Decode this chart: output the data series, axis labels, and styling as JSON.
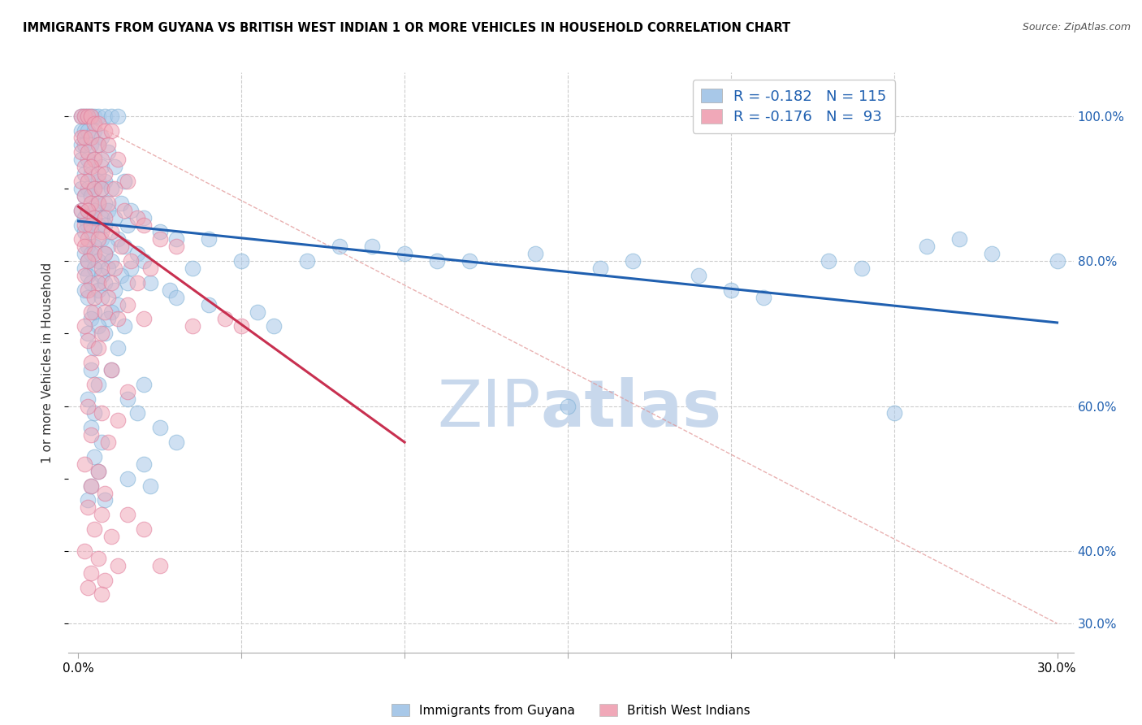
{
  "title": "IMMIGRANTS FROM GUYANA VS BRITISH WEST INDIAN 1 OR MORE VEHICLES IN HOUSEHOLD CORRELATION CHART",
  "source": "Source: ZipAtlas.com",
  "xlabel_vals": [
    0.0,
    5.0,
    10.0,
    15.0,
    20.0,
    25.0,
    30.0
  ],
  "xlabel_show": [
    0.0,
    30.0
  ],
  "ylabel": "1 or more Vehicles in Household",
  "ylabel_vals": [
    30.0,
    40.0,
    60.0,
    80.0,
    100.0
  ],
  "xlim": [
    -0.3,
    30.5
  ],
  "ylim": [
    26.0,
    106.0
  ],
  "legend_r_blue": "R = -0.182",
  "legend_n_blue": "N = 115",
  "legend_r_pink": "R = -0.176",
  "legend_n_pink": "N =  93",
  "legend_bottom_blue": "Immigrants from Guyana",
  "legend_bottom_pink": "British West Indians",
  "blue_color": "#a8c8e8",
  "blue_edge": "#7aafd4",
  "pink_color": "#f0a8b8",
  "pink_edge": "#e07898",
  "blue_line_color": "#2060b0",
  "pink_line_color": "#c83050",
  "blue_line": [
    [
      0.0,
      85.5
    ],
    [
      30.0,
      71.5
    ]
  ],
  "pink_line": [
    [
      0.0,
      87.5
    ],
    [
      10.0,
      55.0
    ]
  ],
  "diag_line": [
    [
      0.0,
      100.0
    ],
    [
      30.0,
      30.0
    ]
  ],
  "blue_scatter": [
    [
      0.1,
      100.0
    ],
    [
      0.2,
      100.0
    ],
    [
      0.3,
      100.0
    ],
    [
      0.4,
      100.0
    ],
    [
      0.5,
      100.0
    ],
    [
      0.6,
      100.0
    ],
    [
      0.8,
      100.0
    ],
    [
      1.0,
      100.0
    ],
    [
      1.2,
      100.0
    ],
    [
      0.1,
      98.0
    ],
    [
      0.2,
      98.0
    ],
    [
      0.3,
      98.0
    ],
    [
      0.5,
      98.0
    ],
    [
      0.7,
      97.0
    ],
    [
      0.1,
      96.0
    ],
    [
      0.2,
      96.0
    ],
    [
      0.4,
      96.0
    ],
    [
      0.6,
      96.0
    ],
    [
      0.9,
      95.0
    ],
    [
      0.1,
      94.0
    ],
    [
      0.3,
      94.0
    ],
    [
      0.5,
      94.0
    ],
    [
      0.7,
      93.0
    ],
    [
      1.1,
      93.0
    ],
    [
      0.2,
      92.0
    ],
    [
      0.4,
      92.0
    ],
    [
      0.6,
      91.0
    ],
    [
      0.8,
      91.0
    ],
    [
      1.4,
      91.0
    ],
    [
      0.1,
      90.0
    ],
    [
      0.3,
      90.0
    ],
    [
      0.5,
      90.0
    ],
    [
      0.7,
      90.0
    ],
    [
      1.0,
      90.0
    ],
    [
      0.2,
      89.0
    ],
    [
      0.4,
      89.0
    ],
    [
      0.6,
      88.0
    ],
    [
      0.8,
      88.0
    ],
    [
      1.3,
      88.0
    ],
    [
      0.1,
      87.0
    ],
    [
      0.3,
      87.0
    ],
    [
      0.5,
      87.0
    ],
    [
      0.9,
      87.0
    ],
    [
      1.6,
      87.0
    ],
    [
      0.2,
      86.0
    ],
    [
      0.4,
      86.0
    ],
    [
      0.7,
      86.0
    ],
    [
      1.1,
      86.0
    ],
    [
      2.0,
      86.0
    ],
    [
      0.1,
      85.0
    ],
    [
      0.3,
      85.0
    ],
    [
      0.6,
      85.0
    ],
    [
      0.8,
      85.0
    ],
    [
      1.5,
      85.0
    ],
    [
      0.2,
      84.0
    ],
    [
      0.4,
      84.0
    ],
    [
      0.7,
      83.0
    ],
    [
      1.2,
      83.0
    ],
    [
      2.5,
      84.0
    ],
    [
      0.3,
      82.0
    ],
    [
      0.5,
      82.0
    ],
    [
      0.9,
      82.0
    ],
    [
      1.4,
      82.0
    ],
    [
      3.0,
      83.0
    ],
    [
      0.2,
      81.0
    ],
    [
      0.4,
      81.0
    ],
    [
      0.8,
      81.0
    ],
    [
      1.8,
      81.0
    ],
    [
      4.0,
      83.0
    ],
    [
      0.3,
      80.0
    ],
    [
      0.6,
      80.0
    ],
    [
      1.0,
      80.0
    ],
    [
      2.0,
      80.0
    ],
    [
      5.0,
      80.0
    ],
    [
      0.2,
      79.0
    ],
    [
      0.5,
      79.0
    ],
    [
      0.9,
      79.0
    ],
    [
      1.6,
      79.0
    ],
    [
      0.3,
      78.0
    ],
    [
      0.7,
      78.0
    ],
    [
      1.3,
      78.0
    ],
    [
      3.5,
      79.0
    ],
    [
      0.4,
      77.0
    ],
    [
      0.8,
      77.0
    ],
    [
      1.5,
      77.0
    ],
    [
      2.2,
      77.0
    ],
    [
      0.2,
      76.0
    ],
    [
      0.6,
      76.0
    ],
    [
      1.1,
      76.0
    ],
    [
      2.8,
      76.0
    ],
    [
      0.3,
      75.0
    ],
    [
      0.7,
      75.0
    ],
    [
      1.2,
      74.0
    ],
    [
      3.0,
      75.0
    ],
    [
      0.5,
      73.0
    ],
    [
      1.0,
      73.0
    ],
    [
      4.0,
      74.0
    ],
    [
      0.4,
      72.0
    ],
    [
      0.9,
      72.0
    ],
    [
      5.5,
      73.0
    ],
    [
      0.6,
      71.0
    ],
    [
      1.4,
      71.0
    ],
    [
      6.0,
      71.0
    ],
    [
      0.3,
      70.0
    ],
    [
      0.8,
      70.0
    ],
    [
      0.5,
      68.0
    ],
    [
      1.2,
      68.0
    ],
    [
      8.0,
      82.0
    ],
    [
      0.4,
      65.0
    ],
    [
      1.0,
      65.0
    ],
    [
      11.0,
      80.0
    ],
    [
      0.6,
      63.0
    ],
    [
      2.0,
      63.0
    ],
    [
      14.0,
      81.0
    ],
    [
      0.3,
      61.0
    ],
    [
      1.5,
      61.0
    ],
    [
      16.0,
      79.0
    ],
    [
      0.5,
      59.0
    ],
    [
      1.8,
      59.0
    ],
    [
      19.0,
      78.0
    ],
    [
      0.4,
      57.0
    ],
    [
      2.5,
      57.0
    ],
    [
      21.0,
      75.0
    ],
    [
      0.7,
      55.0
    ],
    [
      3.0,
      55.0
    ],
    [
      24.0,
      79.0
    ],
    [
      0.5,
      53.0
    ],
    [
      2.0,
      52.0
    ],
    [
      26.0,
      82.0
    ],
    [
      0.6,
      51.0
    ],
    [
      1.5,
      50.0
    ],
    [
      28.0,
      81.0
    ],
    [
      0.4,
      49.0
    ],
    [
      2.2,
      49.0
    ],
    [
      30.0,
      80.0
    ],
    [
      0.3,
      47.0
    ],
    [
      0.8,
      47.0
    ],
    [
      7.0,
      80.0
    ],
    [
      9.0,
      82.0
    ],
    [
      10.0,
      81.0
    ],
    [
      12.0,
      80.0
    ],
    [
      17.0,
      80.0
    ],
    [
      20.0,
      76.0
    ],
    [
      23.0,
      80.0
    ],
    [
      27.0,
      83.0
    ],
    [
      15.0,
      60.0
    ],
    [
      25.0,
      59.0
    ]
  ],
  "pink_scatter": [
    [
      0.1,
      100.0
    ],
    [
      0.2,
      100.0
    ],
    [
      0.3,
      100.0
    ],
    [
      0.4,
      100.0
    ],
    [
      0.5,
      99.0
    ],
    [
      0.6,
      99.0
    ],
    [
      0.8,
      98.0
    ],
    [
      1.0,
      98.0
    ],
    [
      0.1,
      97.0
    ],
    [
      0.2,
      97.0
    ],
    [
      0.4,
      97.0
    ],
    [
      0.6,
      96.0
    ],
    [
      0.9,
      96.0
    ],
    [
      0.1,
      95.0
    ],
    [
      0.3,
      95.0
    ],
    [
      0.5,
      94.0
    ],
    [
      0.7,
      94.0
    ],
    [
      1.2,
      94.0
    ],
    [
      0.2,
      93.0
    ],
    [
      0.4,
      93.0
    ],
    [
      0.6,
      92.0
    ],
    [
      0.8,
      92.0
    ],
    [
      1.5,
      91.0
    ],
    [
      0.1,
      91.0
    ],
    [
      0.3,
      91.0
    ],
    [
      0.5,
      90.0
    ],
    [
      0.7,
      90.0
    ],
    [
      1.1,
      90.0
    ],
    [
      0.2,
      89.0
    ],
    [
      0.4,
      88.0
    ],
    [
      0.6,
      88.0
    ],
    [
      0.9,
      88.0
    ],
    [
      1.4,
      87.0
    ],
    [
      0.1,
      87.0
    ],
    [
      0.3,
      87.0
    ],
    [
      0.5,
      86.0
    ],
    [
      0.8,
      86.0
    ],
    [
      1.8,
      86.0
    ],
    [
      0.2,
      85.0
    ],
    [
      0.4,
      85.0
    ],
    [
      0.7,
      84.0
    ],
    [
      1.0,
      84.0
    ],
    [
      2.0,
      85.0
    ],
    [
      0.1,
      83.0
    ],
    [
      0.3,
      83.0
    ],
    [
      0.6,
      83.0
    ],
    [
      1.3,
      82.0
    ],
    [
      2.5,
      83.0
    ],
    [
      0.2,
      82.0
    ],
    [
      0.5,
      81.0
    ],
    [
      0.8,
      81.0
    ],
    [
      1.6,
      80.0
    ],
    [
      3.0,
      82.0
    ],
    [
      0.3,
      80.0
    ],
    [
      0.7,
      79.0
    ],
    [
      1.1,
      79.0
    ],
    [
      2.2,
      79.0
    ],
    [
      0.2,
      78.0
    ],
    [
      0.6,
      77.0
    ],
    [
      1.0,
      77.0
    ],
    [
      1.8,
      77.0
    ],
    [
      0.3,
      76.0
    ],
    [
      0.5,
      75.0
    ],
    [
      0.9,
      75.0
    ],
    [
      1.5,
      74.0
    ],
    [
      0.4,
      73.0
    ],
    [
      0.8,
      73.0
    ],
    [
      1.2,
      72.0
    ],
    [
      2.0,
      72.0
    ],
    [
      0.2,
      71.0
    ],
    [
      0.7,
      70.0
    ],
    [
      3.5,
      71.0
    ],
    [
      0.3,
      69.0
    ],
    [
      0.6,
      68.0
    ],
    [
      4.5,
      72.0
    ],
    [
      0.4,
      66.0
    ],
    [
      1.0,
      65.0
    ],
    [
      5.0,
      71.0
    ],
    [
      0.5,
      63.0
    ],
    [
      1.5,
      62.0
    ],
    [
      0.3,
      60.0
    ],
    [
      0.7,
      59.0
    ],
    [
      1.2,
      58.0
    ],
    [
      0.4,
      56.0
    ],
    [
      0.9,
      55.0
    ],
    [
      0.2,
      52.0
    ],
    [
      0.6,
      51.0
    ],
    [
      0.4,
      49.0
    ],
    [
      0.8,
      48.0
    ],
    [
      0.3,
      46.0
    ],
    [
      0.7,
      45.0
    ],
    [
      1.5,
      45.0
    ],
    [
      0.5,
      43.0
    ],
    [
      1.0,
      42.0
    ],
    [
      2.0,
      43.0
    ],
    [
      0.2,
      40.0
    ],
    [
      0.6,
      39.0
    ],
    [
      1.2,
      38.0
    ],
    [
      0.4,
      37.0
    ],
    [
      0.8,
      36.0
    ],
    [
      2.5,
      38.0
    ],
    [
      0.3,
      35.0
    ],
    [
      0.7,
      34.0
    ]
  ],
  "watermark_zip": "ZIP",
  "watermark_atlas": "atlas",
  "watermark_color": "#c8d8ec",
  "background_color": "#ffffff"
}
